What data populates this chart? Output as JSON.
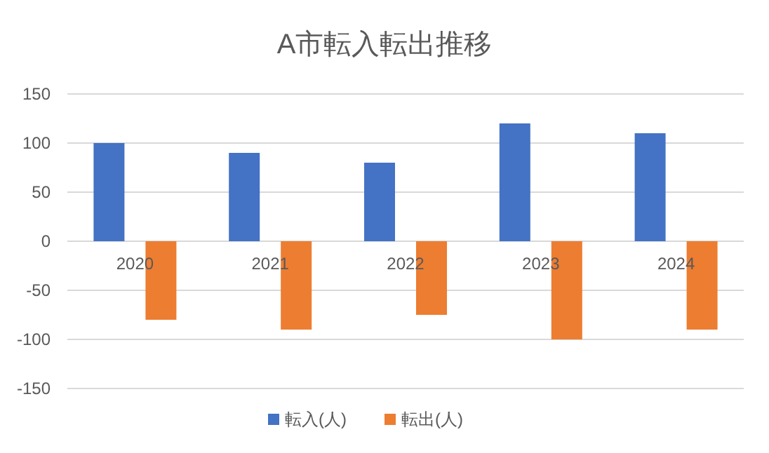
{
  "chart_data": {
    "type": "bar",
    "title": "A市転入転出推移",
    "categories": [
      "2020",
      "2021",
      "2022",
      "2023",
      "2024"
    ],
    "series": [
      {
        "name": "転入(人)",
        "color": "#4472c4",
        "values": [
          100,
          90,
          80,
          120,
          110
        ]
      },
      {
        "name": "転出(人)",
        "color": "#ed7d31",
        "values": [
          -80,
          -90,
          -75,
          -100,
          -90
        ]
      }
    ],
    "ylim": [
      -150,
      150
    ],
    "yticks": [
      -150,
      -100,
      -50,
      0,
      50,
      100,
      150
    ],
    "grid": "y",
    "legend": "bottom"
  }
}
